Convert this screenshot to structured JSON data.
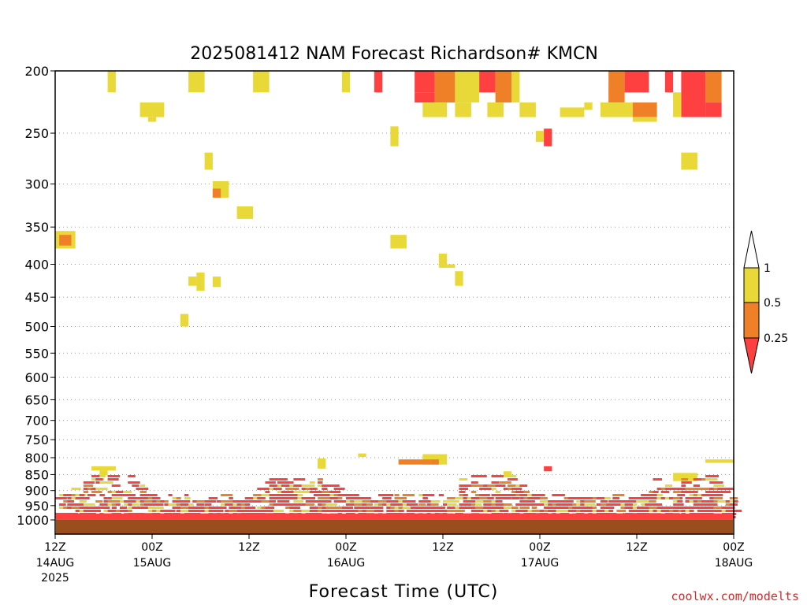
{
  "chart_data": {
    "type": "heatmap",
    "title": "2025081412 NAM Forecast Richardson# KMCN",
    "xlabel": "Forecast Time (UTC)",
    "ylabel": "",
    "credit": "coolwx.com/modelts",
    "y_scale": "log",
    "y_inverted": true,
    "y_ticks": [
      200,
      250,
      300,
      350,
      400,
      450,
      500,
      550,
      600,
      650,
      700,
      750,
      800,
      850,
      900,
      950,
      1000
    ],
    "ylim": [
      1000,
      200
    ],
    "xlim": [
      0,
      84
    ],
    "x_ticks": [
      {
        "x": 0,
        "label": "12Z",
        "date": "14AUG",
        "year": "2025"
      },
      {
        "x": 12,
        "label": "00Z",
        "date": "15AUG",
        "year": ""
      },
      {
        "x": 24,
        "label": "12Z",
        "date": "",
        "year": ""
      },
      {
        "x": 36,
        "label": "00Z",
        "date": "16AUG",
        "year": ""
      },
      {
        "x": 48,
        "label": "12Z",
        "date": "",
        "year": ""
      },
      {
        "x": 60,
        "label": "00Z",
        "date": "17AUG",
        "year": ""
      },
      {
        "x": 72,
        "label": "12Z",
        "date": "",
        "year": ""
      },
      {
        "x": 84,
        "label": "00Z",
        "date": "18AUG",
        "year": ""
      }
    ],
    "legend": {
      "placement": "right",
      "labels": [
        "1",
        "0.5",
        "0.25"
      ],
      "colors": {
        "ri_lt_0_25": "#ff4040",
        "ri_0_25_0_5": "#f08028",
        "ri_0_5_1": "#e8d838",
        "ri_gt_1": "#ffffff"
      }
    },
    "colors": {
      "ground": "#9a4e1e",
      "ri_lt_0_25": "#ff4040",
      "ri_0_25_0_5": "#f08028",
      "ri_0_5_1": "#e8d838"
    },
    "ground_pressure": 1000,
    "cells_columns": [
      "hour_start",
      "hour_end",
      "p_top",
      "p_bottom",
      "category"
    ],
    "cells": [
      [
        6.5,
        7.5,
        200,
        216,
        "ri_0_5_1"
      ],
      [
        16.5,
        18.5,
        200,
        216,
        "ri_0_5_1"
      ],
      [
        24.5,
        26.5,
        200,
        216,
        "ri_0_5_1"
      ],
      [
        35.5,
        36.5,
        200,
        216,
        "ri_0_5_1"
      ],
      [
        39.5,
        40.5,
        200,
        216,
        "ri_lt_0_25"
      ],
      [
        44.5,
        47.0,
        200,
        216,
        "ri_lt_0_25"
      ],
      [
        44.5,
        47.0,
        216,
        224,
        "ri_lt_0_25"
      ],
      [
        47.0,
        49.5,
        200,
        224,
        "ri_0_25_0_5"
      ],
      [
        49.5,
        52.5,
        200,
        224,
        "ri_0_5_1"
      ],
      [
        52.5,
        54.5,
        200,
        216,
        "ri_lt_0_25"
      ],
      [
        54.5,
        56.5,
        200,
        224,
        "ri_0_25_0_5"
      ],
      [
        56.5,
        57.5,
        200,
        224,
        "ri_0_5_1"
      ],
      [
        68.5,
        69.0,
        212,
        218,
        "ri_0_5_1"
      ],
      [
        68.5,
        70.5,
        200,
        224,
        "ri_0_25_0_5"
      ],
      [
        70.5,
        73.5,
        200,
        216,
        "ri_lt_0_25"
      ],
      [
        75.5,
        76.5,
        200,
        216,
        "ri_lt_0_25"
      ],
      [
        77.5,
        80.5,
        200,
        236,
        "ri_lt_0_25"
      ],
      [
        80.5,
        82.5,
        200,
        224,
        "ri_0_25_0_5"
      ],
      [
        80.5,
        82.5,
        224,
        236,
        "ri_lt_0_25"
      ],
      [
        76.5,
        77.5,
        216,
        236,
        "ri_0_5_1"
      ],
      [
        10.5,
        13.5,
        224,
        236,
        "ri_0_5_1"
      ],
      [
        11.5,
        12.5,
        236,
        240,
        "ri_0_5_1"
      ],
      [
        45.5,
        48.5,
        224,
        236,
        "ri_0_5_1"
      ],
      [
        49.5,
        51.5,
        224,
        236,
        "ri_0_5_1"
      ],
      [
        53.5,
        55.5,
        224,
        236,
        "ri_0_5_1"
      ],
      [
        57.5,
        59.5,
        224,
        236,
        "ri_0_5_1"
      ],
      [
        62.5,
        65.5,
        228,
        236,
        "ri_0_5_1"
      ],
      [
        65.5,
        66.5,
        224,
        230,
        "ri_0_5_1"
      ],
      [
        67.5,
        71.5,
        224,
        236,
        "ri_0_5_1"
      ],
      [
        71.5,
        74.5,
        224,
        236,
        "ri_0_25_0_5"
      ],
      [
        71.5,
        74.5,
        236,
        240,
        "ri_0_5_1"
      ],
      [
        41.5,
        42.5,
        244,
        262,
        "ri_0_5_1"
      ],
      [
        59.5,
        60.5,
        248,
        258,
        "ri_0_5_1"
      ],
      [
        60.5,
        61.5,
        246,
        262,
        "ri_lt_0_25"
      ],
      [
        18.5,
        19.5,
        268,
        285,
        "ri_0_5_1"
      ],
      [
        77.5,
        79.5,
        268,
        285,
        "ri_0_5_1"
      ],
      [
        19.5,
        21.5,
        297,
        315,
        "ri_0_5_1"
      ],
      [
        19.5,
        20.5,
        305,
        315,
        "ri_0_25_0_5"
      ],
      [
        22.5,
        24.5,
        325,
        340,
        "ri_0_5_1"
      ],
      [
        0.0,
        2.5,
        355,
        378,
        "ri_0_5_1"
      ],
      [
        0.5,
        2.0,
        360,
        374,
        "ri_0_25_0_5"
      ],
      [
        41.5,
        43.5,
        360,
        378,
        "ri_0_5_1"
      ],
      [
        47.5,
        48.5,
        385,
        405,
        "ri_0_5_1"
      ],
      [
        48.5,
        49.5,
        400,
        405,
        "ri_0_5_1"
      ],
      [
        49.5,
        50.5,
        410,
        432,
        "ri_0_5_1"
      ],
      [
        16.5,
        17.5,
        418,
        432,
        "ri_0_5_1"
      ],
      [
        17.5,
        18.5,
        412,
        440,
        "ri_0_5_1"
      ],
      [
        19.5,
        20.5,
        418,
        434,
        "ri_0_5_1"
      ],
      [
        15.5,
        16.5,
        478,
        500,
        "ri_0_5_1"
      ],
      [
        37.5,
        38.5,
        788,
        798,
        "ri_0_5_1"
      ],
      [
        45.5,
        48.5,
        790,
        820,
        "ri_0_5_1"
      ],
      [
        42.5,
        46.5,
        805,
        820,
        "ri_0_25_0_5"
      ],
      [
        46.5,
        47.5,
        805,
        820,
        "ri_0_25_0_5"
      ],
      [
        80.5,
        84.0,
        805,
        815,
        "ri_0_5_1"
      ],
      [
        4.5,
        7.5,
        825,
        838,
        "ri_0_5_1"
      ],
      [
        5.5,
        6.5,
        838,
        852,
        "ri_0_5_1"
      ],
      [
        32.5,
        33.5,
        802,
        832,
        "ri_0_5_1"
      ],
      [
        60.5,
        61.5,
        825,
        840,
        "ri_lt_0_25"
      ],
      [
        55.5,
        56.5,
        840,
        858,
        "ri_0_5_1"
      ],
      [
        76.5,
        79.5,
        845,
        870,
        "ri_0_5_1"
      ]
    ],
    "low_level_band_hours": [
      0,
      84
    ],
    "low_level_band_pressure": [
      1000,
      850
    ]
  }
}
